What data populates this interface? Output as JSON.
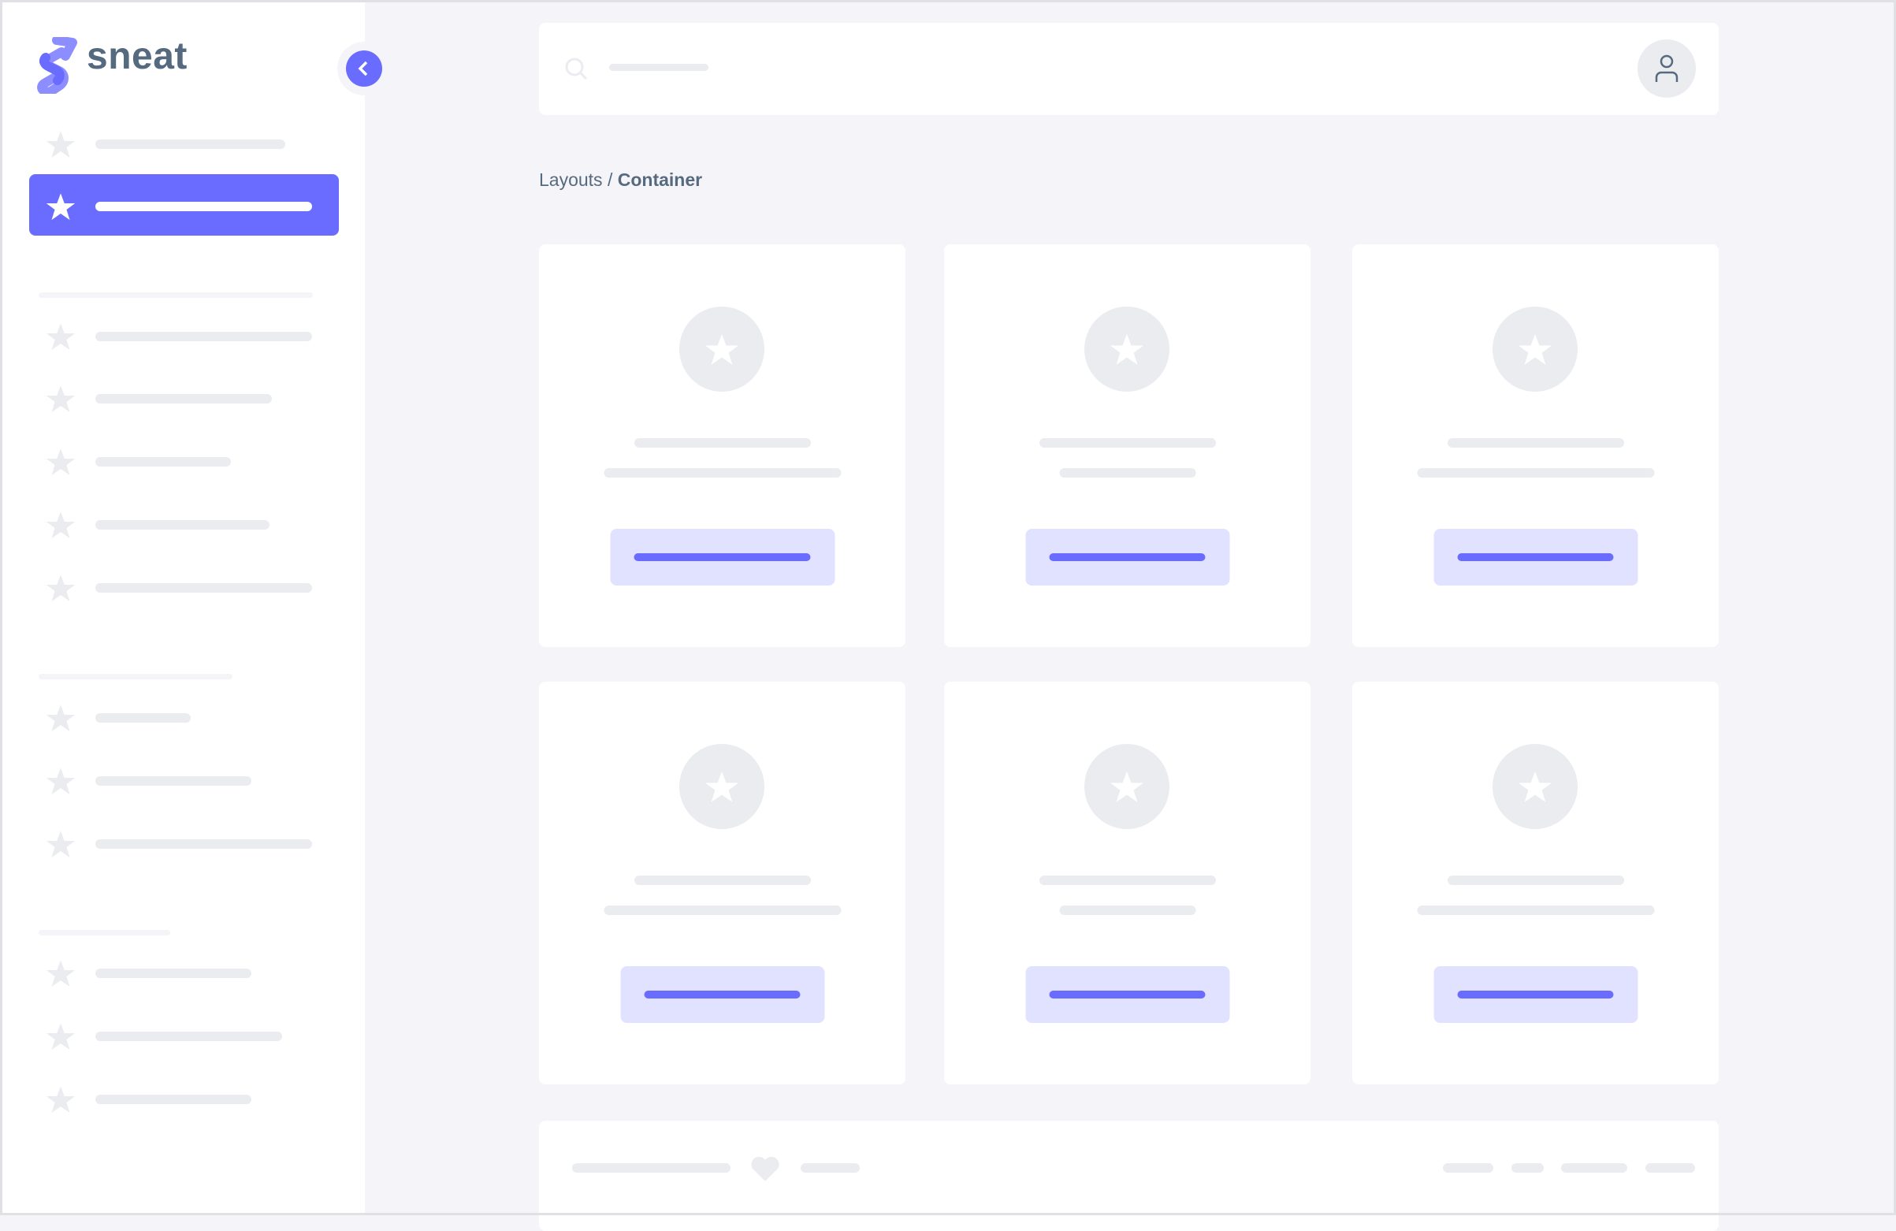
{
  "brand": {
    "name": "sneat",
    "accent": "#696cff",
    "text_color": "#566a7f"
  },
  "breadcrumb": {
    "parent": "Layouts",
    "separator": "/",
    "current": "Container"
  },
  "sidebar": {
    "active_index": 1,
    "icon": "star-icon",
    "collapse_icon": "chevron-left-icon"
  },
  "navbar": {
    "search_icon": "search-icon",
    "avatar_icon": "user-icon"
  },
  "cards": {
    "count": 6,
    "icon": "star-icon"
  },
  "footer": {
    "icon": "heart-icon"
  }
}
